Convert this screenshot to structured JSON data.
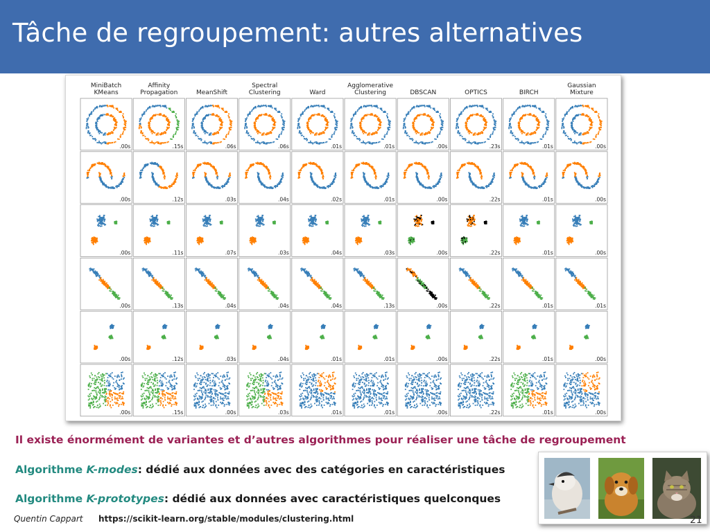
{
  "slide": {
    "title": "Tâche de regroupement: autres alternatives",
    "line1": "Il existe énormément de variantes et d’autres algorithmes pour réaliser une tâche de regroupement",
    "line2": {
      "prefix": "Algorithme ",
      "emph": "K-modes",
      "suffix": ": ",
      "rest": "dédié aux données avec des catégories en caractéristiques"
    },
    "line3": {
      "prefix": "Algorithme ",
      "emph": "K-prototypes",
      "suffix": ": ",
      "rest": "dédié aux données avec caractéristiques quelconques"
    },
    "footer_author": "Quentin Cappart",
    "footer_url": "https://scikit-learn.org/stable/modules/clustering.html",
    "page_number": "21"
  },
  "colors": {
    "header": "#3f6cae",
    "emphasis_red": "#9b2155",
    "emphasis_teal": "#238a80",
    "cluster_blue": "#377eb8",
    "cluster_orange": "#ff7f00",
    "cluster_green": "#4daf4a",
    "noise": "#000000",
    "pink": "#f781bf"
  },
  "photos": [
    {
      "name": "bird-photo",
      "label": "bird"
    },
    {
      "name": "dog-photo",
      "label": "dog"
    },
    {
      "name": "cat-photo",
      "label": "cat"
    }
  ],
  "figure": {
    "algorithms": [
      [
        "MiniBatch",
        "KMeans"
      ],
      [
        "Affinity",
        "Propagation"
      ],
      [
        "MeanShift"
      ],
      [
        "Spectral",
        "Clustering"
      ],
      [
        "Ward"
      ],
      [
        "Agglomerative",
        "Clustering"
      ],
      [
        "DBSCAN"
      ],
      [
        "OPTICS"
      ],
      [
        "BIRCH"
      ],
      [
        "Gaussian",
        "Mixture"
      ]
    ],
    "datasets": [
      "noisy_circles",
      "noisy_moons",
      "varied",
      "aniso",
      "blobs",
      "no_structure"
    ],
    "times": [
      [
        ".00s",
        ".15s",
        ".06s",
        ".06s",
        ".01s",
        ".01s",
        ".00s",
        ".23s",
        ".01s",
        ".00s"
      ],
      [
        ".00s",
        ".12s",
        ".03s",
        ".04s",
        ".02s",
        ".01s",
        ".00s",
        ".22s",
        ".01s",
        ".00s"
      ],
      [
        ".00s",
        ".11s",
        ".07s",
        ".03s",
        ".04s",
        ".03s",
        ".00s",
        ".22s",
        ".01s",
        ".00s"
      ],
      [
        ".00s",
        ".13s",
        ".04s",
        ".04s",
        ".04s",
        ".13s",
        ".00s",
        ".22s",
        ".01s",
        ".01s"
      ],
      [
        ".00s",
        ".12s",
        ".03s",
        ".04s",
        ".01s",
        ".01s",
        ".00s",
        ".22s",
        ".01s",
        ".00s"
      ],
      [
        ".00s",
        ".15s",
        ".00s",
        ".03s",
        ".01s",
        ".01s",
        ".00s",
        ".22s",
        ".01s",
        ".00s"
      ]
    ],
    "colorings": [
      [
        "split_lr",
        "mixed3",
        "split_lr",
        "ring",
        "ring",
        "ring",
        "ring",
        "ring",
        "ring",
        "split_lr"
      ],
      [
        "split_tb",
        "mixed2",
        "split_tb",
        "moon",
        "moon",
        "moon",
        "moon",
        "moon",
        "split_tb",
        "split_tb"
      ],
      [
        "three",
        "three",
        "three",
        "three",
        "three",
        "three",
        "noise3",
        "noise3",
        "three",
        "three"
      ],
      [
        "three",
        "three",
        "three",
        "three",
        "three",
        "three",
        "noise3",
        "three",
        "three",
        "three"
      ],
      [
        "three",
        "three",
        "three",
        "three",
        "three",
        "three",
        "three",
        "three",
        "three",
        "three"
      ],
      [
        "quad3",
        "quad3",
        "one",
        "quad3",
        "quad2",
        "one",
        "one",
        "one",
        "quad3",
        "quad2"
      ]
    ]
  }
}
